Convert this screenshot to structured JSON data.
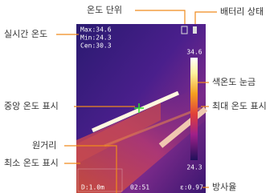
{
  "labels": {
    "realtime_temp": "실시간 온도",
    "temp_unit": "온도 단위",
    "battery": "배터리 상태",
    "color_scale": "색온도 눈금",
    "center_temp": "중앙 온도 표시",
    "max_temp": "최대 온도 표시",
    "distance": "원거리",
    "min_temp": "최소 온도 표시",
    "emissivity": "방사율"
  },
  "overlay": {
    "max": "Max:34.6",
    "min": "Min:24.3",
    "cen": "Cen:30.3",
    "scale_top": "34.6",
    "scale_bottom": "24.3",
    "distance": "D:1.0m",
    "time": "02:51",
    "emissivity": "ε:0.97"
  }
}
